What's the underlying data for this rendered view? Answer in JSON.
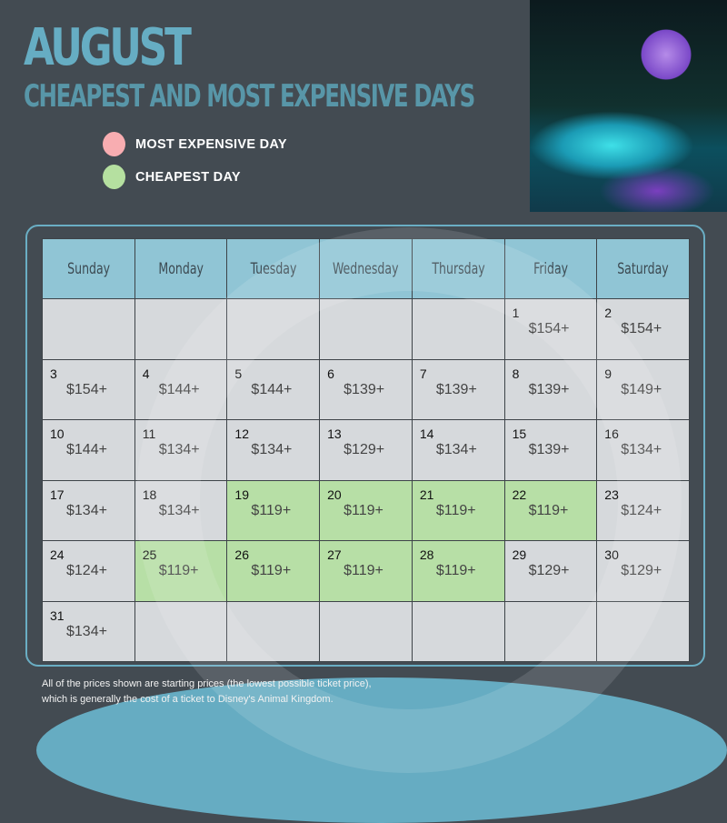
{
  "header": {
    "title": "AUGUST",
    "subtitle": "CHEAPEST AND MOST EXPENSIVE DAYS"
  },
  "legend": [
    {
      "label": "MOST EXPENSIVE DAY",
      "color": "#f8adb1"
    },
    {
      "label": "CHEAPEST DAY",
      "color": "#b5e0a0"
    }
  ],
  "photo": {
    "icon": "epcot-spaceship-earth-photo"
  },
  "colors": {
    "accent": "#66adc3",
    "background": "#434b52",
    "cheapest": "#b7dfa6",
    "most_expensive": "#f7b0b3"
  },
  "calendar": {
    "weekdays": [
      "Sunday",
      "Monday",
      "Tuesday",
      "Wednesday",
      "Thursday",
      "Friday",
      "Saturday"
    ],
    "days": [
      {
        "day": "1",
        "price": "$154+"
      },
      {
        "day": "2",
        "price": "$154+"
      },
      {
        "day": "3",
        "price": "$154+"
      },
      {
        "day": "4",
        "price": "$144+"
      },
      {
        "day": "5",
        "price": "$144+"
      },
      {
        "day": "6",
        "price": "$139+"
      },
      {
        "day": "7",
        "price": "$139+"
      },
      {
        "day": "8",
        "price": "$139+"
      },
      {
        "day": "9",
        "price": "$149+"
      },
      {
        "day": "10",
        "price": "$144+"
      },
      {
        "day": "11",
        "price": "$134+"
      },
      {
        "day": "12",
        "price": "$134+"
      },
      {
        "day": "13",
        "price": "$129+"
      },
      {
        "day": "14",
        "price": "$134+"
      },
      {
        "day": "15",
        "price": "$139+"
      },
      {
        "day": "16",
        "price": "$134+"
      },
      {
        "day": "17",
        "price": "$134+"
      },
      {
        "day": "18",
        "price": "$134+"
      },
      {
        "day": "19",
        "price": "$119+",
        "type": "cheapest"
      },
      {
        "day": "20",
        "price": "$119+",
        "type": "cheapest"
      },
      {
        "day": "21",
        "price": "$119+",
        "type": "cheapest"
      },
      {
        "day": "22",
        "price": "$119+",
        "type": "cheapest"
      },
      {
        "day": "23",
        "price": "$124+"
      },
      {
        "day": "24",
        "price": "$124+"
      },
      {
        "day": "25",
        "price": "$119+",
        "type": "cheapest"
      },
      {
        "day": "26",
        "price": "$119+",
        "type": "cheapest"
      },
      {
        "day": "27",
        "price": "$119+",
        "type": "cheapest"
      },
      {
        "day": "28",
        "price": "$119+",
        "type": "cheapest"
      },
      {
        "day": "29",
        "price": "$129+"
      },
      {
        "day": "30",
        "price": "$129+"
      },
      {
        "day": "31",
        "price": "$134+"
      }
    ],
    "first_weekday": 5
  },
  "footer": {
    "note_line1": "All of the prices shown are starting prices (the lowest possible ticket price),",
    "note_line2": "which is generally the cost of a ticket to Disney's Animal Kingdom."
  }
}
